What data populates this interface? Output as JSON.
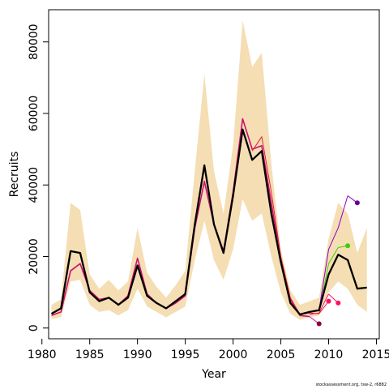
{
  "chart_data": {
    "type": "line",
    "xlabel": "Year",
    "ylabel": "Recruits",
    "xlim": [
      1980.7,
      2015.3
    ],
    "ylim": [
      -3000,
      89000
    ],
    "x_ticks": [
      1980,
      1985,
      1990,
      1995,
      2000,
      2005,
      2010,
      2015
    ],
    "y_ticks": [
      0,
      20000,
      40000,
      60000,
      80000
    ],
    "grid": false,
    "legend": "none",
    "band": {
      "color": "#f5deb3",
      "x": [
        1981,
        1982,
        1983,
        1984,
        1985,
        1986,
        1987,
        1988,
        1989,
        1990,
        1991,
        1992,
        1993,
        1994,
        1995,
        1996,
        1997,
        1998,
        1999,
        2000,
        2001,
        2002,
        2003,
        2004,
        2005,
        2006,
        2007,
        2008,
        2009,
        2010,
        2011,
        2012,
        2013,
        2014
      ],
      "upper": [
        6500,
        8000,
        35000,
        33000,
        15000,
        11000,
        13500,
        10500,
        13000,
        28000,
        15500,
        11500,
        8500,
        12000,
        16000,
        44000,
        71000,
        44000,
        32000,
        51000,
        86000,
        73000,
        77000,
        46000,
        22000,
        10500,
        6500,
        7500,
        8500,
        25000,
        35000,
        32000,
        21000,
        28000
      ],
      "lower": [
        2500,
        3000,
        13000,
        13500,
        6500,
        4500,
        5000,
        3500,
        5000,
        11000,
        6000,
        4500,
        3000,
        4500,
        6000,
        19000,
        30000,
        19000,
        13500,
        22000,
        36000,
        30000,
        32000,
        20000,
        10000,
        4000,
        2300,
        3000,
        3500,
        10000,
        13000,
        11000,
        6500,
        4500
      ]
    },
    "series": [
      {
        "color": "#000000",
        "width": 2.3,
        "x": [
          1981,
          1982,
          1983,
          1984,
          1985,
          1986,
          1987,
          1988,
          1989,
          1990,
          1991,
          1992,
          1993,
          1994,
          1995,
          1996,
          1997,
          1998,
          1999,
          2000,
          2001,
          2002,
          2003,
          2004,
          2005,
          2006,
          2007,
          2008,
          2009,
          2010,
          2011,
          2012,
          2013,
          2014
        ],
        "values": [
          4000,
          5500,
          21500,
          21000,
          10000,
          7500,
          8500,
          6500,
          8500,
          17500,
          9000,
          7000,
          5500,
          7500,
          9500,
          29000,
          45500,
          29000,
          21000,
          37000,
          55500,
          47000,
          49500,
          32000,
          18500,
          7000,
          3800,
          4500,
          5000,
          15000,
          20500,
          19000,
          11000,
          11300
        ]
      },
      {
        "color": "#cc1070",
        "width": 1.6,
        "x": [
          1981,
          1982,
          1983,
          1984,
          1985,
          1986,
          1987,
          1988,
          1989,
          1990,
          1991,
          1992,
          1993,
          1994,
          1995,
          1996,
          1997,
          1998,
          1999,
          2000,
          2001,
          2002,
          2003,
          2004,
          2005,
          2006,
          2007,
          2008
        ],
        "values": [
          3500,
          4500,
          16000,
          18000,
          10500,
          8000,
          8500,
          6500,
          9000,
          19500,
          9500,
          7000,
          5500,
          7000,
          9000,
          28000,
          41000,
          29000,
          21500,
          38000,
          58500,
          50000,
          51000,
          35000,
          19000,
          8000,
          3500,
          3200
        ],
        "end_point": [
          2009,
          1200
        ],
        "end_color": "#880044"
      },
      {
        "color": "#e0203a",
        "width": 1.0,
        "x": [
          2002,
          2003,
          2004,
          2005,
          2006,
          2007,
          2008,
          2009
        ],
        "values": [
          49500,
          53500,
          38000,
          20000,
          8500,
          3800,
          4200,
          4000
        ],
        "end_point": [
          2010,
          7500
        ],
        "end_color": "#ff1060"
      },
      {
        "color": "#ff1060",
        "width": 1.0,
        "x": [
          2008,
          2009,
          2010
        ],
        "values": [
          3800,
          4200,
          9500
        ],
        "end_point": [
          2011,
          7000
        ],
        "end_color": "#ff1060"
      },
      {
        "color": "#44cc00",
        "width": 1.0,
        "x": [
          2009,
          2010,
          2011
        ],
        "values": [
          4500,
          18000,
          22500
        ],
        "end_point": [
          2012,
          23000
        ],
        "end_color": "#44cc00"
      },
      {
        "color": "#8800cc",
        "width": 1.0,
        "x": [
          2009,
          2010,
          2011,
          2012
        ],
        "values": [
          5000,
          22000,
          28000,
          37000
        ],
        "end_point": [
          2013,
          35000
        ],
        "end_color": "#660099"
      }
    ]
  },
  "credit": "stockassessment.org, tsw-2, r6882"
}
